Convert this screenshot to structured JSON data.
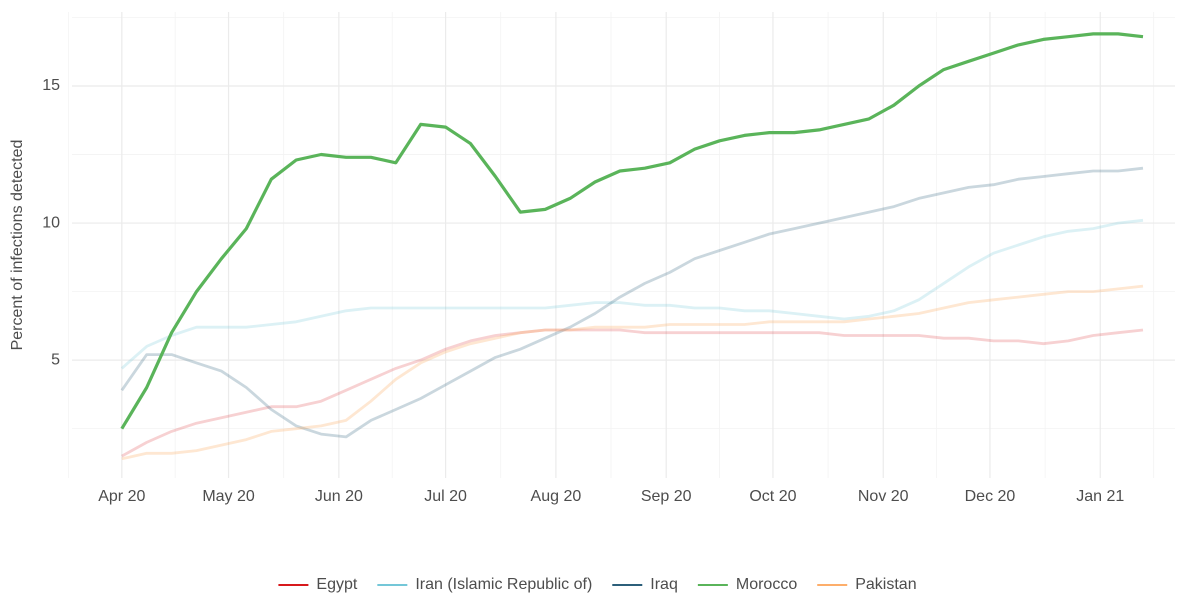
{
  "chart_data": {
    "type": "line",
    "ylabel": "Percent of infections detected",
    "x": [
      "2020-04-01",
      "2020-04-08",
      "2020-04-15",
      "2020-04-22",
      "2020-04-29",
      "2020-05-06",
      "2020-05-13",
      "2020-05-20",
      "2020-05-27",
      "2020-06-03",
      "2020-06-10",
      "2020-06-17",
      "2020-06-24",
      "2020-07-01",
      "2020-07-08",
      "2020-07-15",
      "2020-07-22",
      "2020-07-29",
      "2020-08-05",
      "2020-08-12",
      "2020-08-19",
      "2020-08-26",
      "2020-09-02",
      "2020-09-09",
      "2020-09-16",
      "2020-09-23",
      "2020-09-30",
      "2020-10-07",
      "2020-10-14",
      "2020-10-21",
      "2020-10-28",
      "2020-11-04",
      "2020-11-11",
      "2020-11-18",
      "2020-11-25",
      "2020-12-02",
      "2020-12-09",
      "2020-12-16",
      "2020-12-23",
      "2020-12-30",
      "2021-01-06",
      "2021-01-13"
    ],
    "series": [
      {
        "name": "Egypt",
        "color": "#d7191c",
        "opacity": 0.2,
        "values": [
          1.5,
          2.0,
          2.4,
          2.7,
          2.9,
          3.1,
          3.3,
          3.3,
          3.5,
          3.9,
          4.3,
          4.7,
          5.0,
          5.4,
          5.7,
          5.9,
          6.0,
          6.1,
          6.1,
          6.1,
          6.1,
          6.0,
          6.0,
          6.0,
          6.0,
          6.0,
          6.0,
          6.0,
          6.0,
          5.9,
          5.9,
          5.9,
          5.9,
          5.8,
          5.8,
          5.7,
          5.7,
          5.6,
          5.7,
          5.9,
          6.0,
          6.1
        ]
      },
      {
        "name": "Iran (Islamic Republic of)",
        "color": "#74c7d8",
        "opacity": 0.25,
        "values": [
          4.7,
          5.5,
          5.9,
          6.2,
          6.2,
          6.2,
          6.3,
          6.4,
          6.6,
          6.8,
          6.9,
          6.9,
          6.9,
          6.9,
          6.9,
          6.9,
          6.9,
          6.9,
          7.0,
          7.1,
          7.1,
          7.0,
          7.0,
          6.9,
          6.9,
          6.8,
          6.8,
          6.7,
          6.6,
          6.5,
          6.6,
          6.8,
          7.2,
          7.8,
          8.4,
          8.9,
          9.2,
          9.5,
          9.7,
          9.8,
          10.0,
          10.1
        ]
      },
      {
        "name": "Iraq",
        "color": "#2c5f7a",
        "opacity": 0.25,
        "values": [
          3.9,
          5.2,
          5.2,
          4.9,
          4.6,
          4.0,
          3.2,
          2.6,
          2.3,
          2.2,
          2.8,
          3.2,
          3.6,
          4.1,
          4.6,
          5.1,
          5.4,
          5.8,
          6.2,
          6.7,
          7.3,
          7.8,
          8.2,
          8.7,
          9.0,
          9.3,
          9.6,
          9.8,
          10.0,
          10.2,
          10.4,
          10.6,
          10.9,
          11.1,
          11.3,
          11.4,
          11.6,
          11.7,
          11.8,
          11.9,
          11.9,
          12.0
        ]
      },
      {
        "name": "Morocco",
        "color": "#5ab45a",
        "opacity": 1,
        "values": [
          2.5,
          4.0,
          6.0,
          7.5,
          8.7,
          9.8,
          11.6,
          12.3,
          12.5,
          12.4,
          12.4,
          12.2,
          13.6,
          13.5,
          12.9,
          11.7,
          10.4,
          10.5,
          10.9,
          11.5,
          11.9,
          12.0,
          12.2,
          12.7,
          13.0,
          13.2,
          13.3,
          13.3,
          13.4,
          13.6,
          13.8,
          14.3,
          15.0,
          15.6,
          15.9,
          16.2,
          16.5,
          16.7,
          16.8,
          16.9,
          16.9,
          16.8
        ]
      },
      {
        "name": "Pakistan",
        "color": "#fdae6b",
        "opacity": 0.3,
        "values": [
          1.4,
          1.6,
          1.6,
          1.7,
          1.9,
          2.1,
          2.4,
          2.5,
          2.6,
          2.8,
          3.5,
          4.3,
          4.9,
          5.3,
          5.6,
          5.8,
          6.0,
          6.1,
          6.1,
          6.2,
          6.2,
          6.2,
          6.3,
          6.3,
          6.3,
          6.3,
          6.4,
          6.4,
          6.4,
          6.4,
          6.5,
          6.6,
          6.7,
          6.9,
          7.1,
          7.2,
          7.3,
          7.4,
          7.5,
          7.5,
          7.6,
          7.7
        ]
      }
    ],
    "xlim": [
      "2020-03-18",
      "2021-01-22"
    ],
    "xticks": [
      {
        "value": "2020-04-01",
        "label": "Apr 20"
      },
      {
        "value": "2020-05-01",
        "label": "May 20"
      },
      {
        "value": "2020-06-01",
        "label": "Jun 20"
      },
      {
        "value": "2020-07-01",
        "label": "Jul 20"
      },
      {
        "value": "2020-08-01",
        "label": "Aug 20"
      },
      {
        "value": "2020-09-01",
        "label": "Sep 20"
      },
      {
        "value": "2020-10-01",
        "label": "Oct 20"
      },
      {
        "value": "2020-11-01",
        "label": "Nov 20"
      },
      {
        "value": "2020-12-01",
        "label": "Dec 20"
      },
      {
        "value": "2021-01-01",
        "label": "Jan 21"
      }
    ],
    "ylim": [
      0.7,
      17.7
    ],
    "yticks": [
      5,
      10,
      15
    ],
    "grid": true,
    "legend": "bottom"
  }
}
